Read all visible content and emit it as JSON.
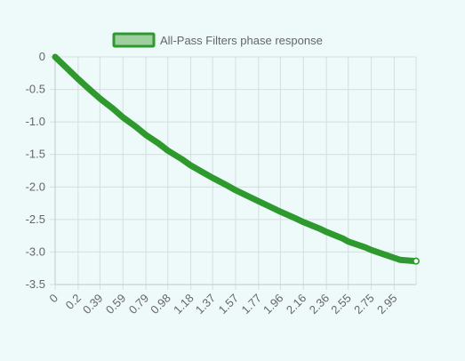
{
  "chart_data": {
    "type": "line",
    "title": "",
    "xlabel": "",
    "ylabel": "",
    "legend_position": "top",
    "grid": true,
    "series": [
      {
        "name": "All-Pass Filters phase response",
        "color": "#2e9a2e",
        "fill_color": "#9fce9f",
        "x": [
          0,
          0.1,
          0.2,
          0.3,
          0.39,
          0.5,
          0.59,
          0.7,
          0.79,
          0.9,
          0.98,
          1.1,
          1.18,
          1.3,
          1.37,
          1.5,
          1.57,
          1.7,
          1.77,
          1.9,
          1.96,
          2.1,
          2.16,
          2.3,
          2.36,
          2.5,
          2.55,
          2.7,
          2.75,
          2.9,
          2.95,
          3.0,
          3.14
        ],
        "y": [
          0,
          -0.17,
          -0.34,
          -0.5,
          -0.64,
          -0.79,
          -0.93,
          -1.07,
          -1.2,
          -1.33,
          -1.44,
          -1.57,
          -1.67,
          -1.79,
          -1.86,
          -1.98,
          -2.05,
          -2.16,
          -2.22,
          -2.33,
          -2.38,
          -2.49,
          -2.54,
          -2.64,
          -2.69,
          -2.79,
          -2.84,
          -2.93,
          -2.97,
          -3.06,
          -3.09,
          -3.12,
          -3.14
        ]
      }
    ],
    "x_ticks": [
      "0",
      "0.2",
      "0.39",
      "0.59",
      "0.79",
      "0.98",
      "1.18",
      "1.37",
      "1.57",
      "1.77",
      "1.96",
      "2.16",
      "2.36",
      "2.55",
      "2.75",
      "2.95"
    ],
    "x_tick_values": [
      0,
      0.2,
      0.39,
      0.59,
      0.79,
      0.98,
      1.18,
      1.37,
      1.57,
      1.77,
      1.96,
      2.16,
      2.36,
      2.55,
      2.75,
      2.95
    ],
    "xlim": [
      0,
      3.14
    ],
    "y_ticks": [
      "0",
      "-0.5",
      "-1.0",
      "-1.5",
      "-2.0",
      "-2.5",
      "-3.0",
      "-3.5"
    ],
    "y_tick_values": [
      0,
      -0.5,
      -1.0,
      -1.5,
      -2.0,
      -2.5,
      -3.0,
      -3.5
    ],
    "ylim": [
      -3.5,
      0
    ]
  }
}
